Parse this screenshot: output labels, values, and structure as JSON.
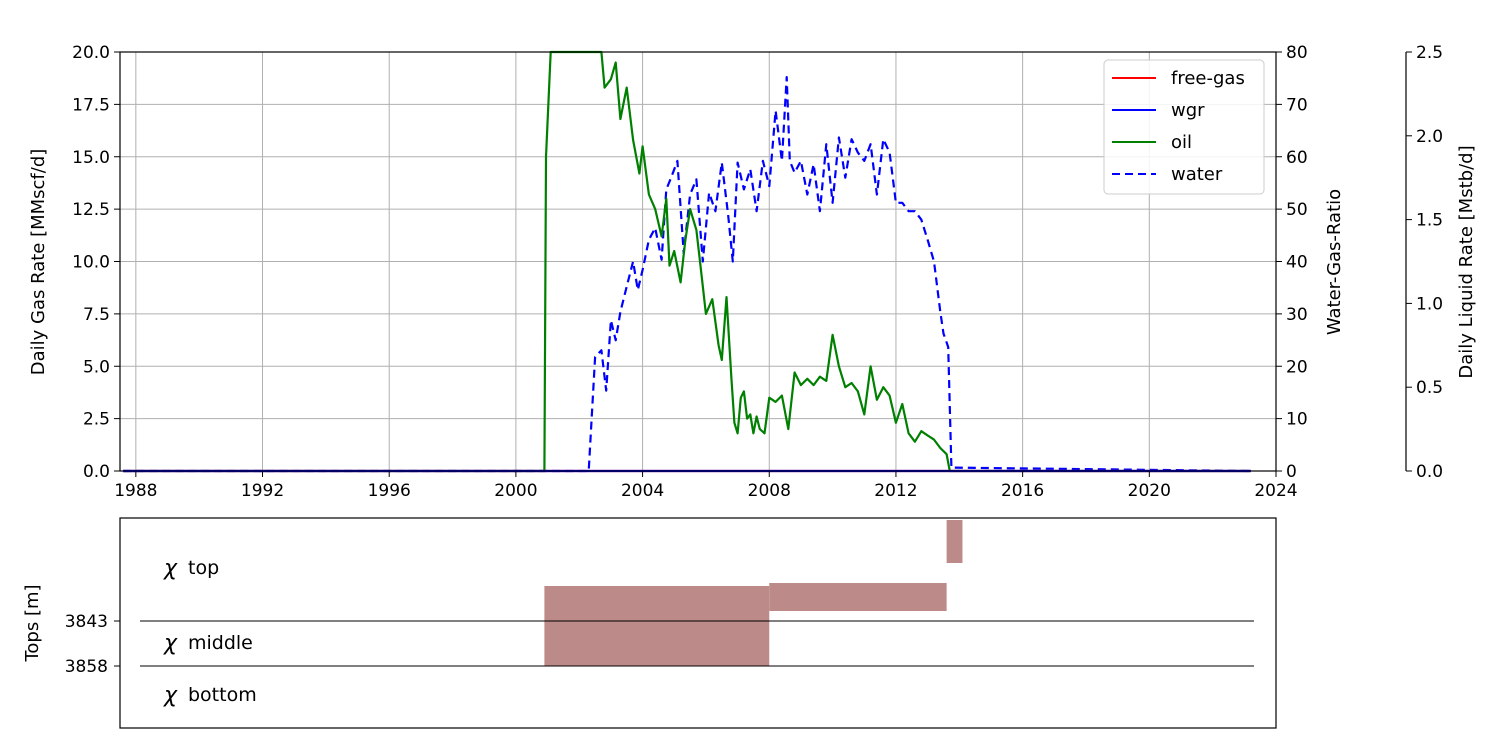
{
  "chart_data": [
    {
      "type": "line",
      "xlabel": "",
      "ylabel": "Daily Gas Rate [MMscf/d]",
      "y2label": "Water-Gas-Ratio",
      "y3label": "Daily Liquid Rate [Mstb/d]",
      "xlim": [
        1987.5,
        2024.0
      ],
      "ylim": [
        0,
        20
      ],
      "y2lim": [
        0,
        80
      ],
      "y3lim": [
        0,
        2.5
      ],
      "x_ticks": [
        "1988",
        "1992",
        "1996",
        "2000",
        "2004",
        "2008",
        "2012",
        "2016",
        "2020",
        "2024"
      ],
      "y_ticks": [
        "0.0",
        "2.5",
        "5.0",
        "7.5",
        "10.0",
        "12.5",
        "15.0",
        "17.5",
        "20.0"
      ],
      "y2_ticks": [
        "0",
        "10",
        "20",
        "30",
        "40",
        "50",
        "60",
        "70",
        "80"
      ],
      "y3_ticks": [
        "0.0",
        "0.5",
        "1.0",
        "1.5",
        "2.0",
        "2.5"
      ],
      "grid": true,
      "legend_position": "top-right",
      "series": [
        {
          "name": "free-gas",
          "color": "#ff0000",
          "style": "solid",
          "axis": "gas",
          "x": [
            1987.6,
            2023.2
          ],
          "y": [
            0,
            0
          ]
        },
        {
          "name": "wgr",
          "color": "#0000ff",
          "style": "solid",
          "axis": "wgr",
          "x": [
            1987.6,
            2023.2
          ],
          "y": [
            0,
            0
          ]
        },
        {
          "name": "oil",
          "color": "#008000",
          "style": "solid",
          "axis": "gas",
          "x": [
            1987.6,
            2000.9,
            2000.95,
            2001.1,
            2001.3,
            2002.7,
            2002.8,
            2003.0,
            2003.15,
            2003.3,
            2003.5,
            2003.7,
            2003.9,
            2004.0,
            2004.2,
            2004.4,
            2004.6,
            2004.75,
            2004.85,
            2005.0,
            2005.2,
            2005.35,
            2005.5,
            2005.7,
            2005.85,
            2006.0,
            2006.2,
            2006.4,
            2006.5,
            2006.65,
            2006.8,
            2006.9,
            2007.0,
            2007.1,
            2007.2,
            2007.3,
            2007.4,
            2007.5,
            2007.6,
            2007.7,
            2007.85,
            2008.0,
            2008.2,
            2008.4,
            2008.6,
            2008.8,
            2009.0,
            2009.2,
            2009.4,
            2009.6,
            2009.8,
            2010.0,
            2010.2,
            2010.4,
            2010.6,
            2010.8,
            2011.0,
            2011.2,
            2011.4,
            2011.6,
            2011.8,
            2012.0,
            2012.2,
            2012.4,
            2012.6,
            2012.8,
            2013.0,
            2013.2,
            2013.4,
            2013.6,
            2013.7,
            2023.2
          ],
          "y": [
            0,
            0,
            15.0,
            20.0,
            20.0,
            20.0,
            18.3,
            18.7,
            19.5,
            16.8,
            18.3,
            15.8,
            14.2,
            15.5,
            13.2,
            12.5,
            11.2,
            13.0,
            9.8,
            10.5,
            9.0,
            11.0,
            12.5,
            11.5,
            9.5,
            7.5,
            8.2,
            6.0,
            5.3,
            8.3,
            4.5,
            2.3,
            1.8,
            3.5,
            3.8,
            2.5,
            2.7,
            1.8,
            2.6,
            2.0,
            1.8,
            3.5,
            3.3,
            3.6,
            2.0,
            4.7,
            4.1,
            4.4,
            4.1,
            4.5,
            4.3,
            6.5,
            5.0,
            4.0,
            4.2,
            3.8,
            2.7,
            5.0,
            3.4,
            4.0,
            3.6,
            2.3,
            3.2,
            1.8,
            1.4,
            1.9,
            1.7,
            1.5,
            1.1,
            0.8,
            0.0,
            0.0
          ]
        },
        {
          "name": "water",
          "color": "#0000ff",
          "style": "dashed",
          "axis": "liquid",
          "x": [
            1987.6,
            2002.3,
            2002.5,
            2002.7,
            2002.85,
            2003.0,
            2003.15,
            2003.3,
            2003.5,
            2003.7,
            2003.85,
            2004.0,
            2004.2,
            2004.4,
            2004.6,
            2004.75,
            2004.9,
            2005.1,
            2005.3,
            2005.5,
            2005.7,
            2005.9,
            2006.1,
            2006.3,
            2006.5,
            2006.7,
            2006.85,
            2007.0,
            2007.2,
            2007.4,
            2007.6,
            2007.8,
            2008.0,
            2008.2,
            2008.4,
            2008.55,
            2008.65,
            2008.8,
            2009.0,
            2009.2,
            2009.4,
            2009.6,
            2009.8,
            2010.0,
            2010.2,
            2010.4,
            2010.6,
            2010.8,
            2011.0,
            2011.2,
            2011.4,
            2011.6,
            2011.8,
            2012.0,
            2012.2,
            2012.4,
            2012.6,
            2012.8,
            2013.0,
            2013.2,
            2013.4,
            2013.5,
            2013.65,
            2013.75,
            2023.2
          ],
          "y": [
            0,
            0,
            0.68,
            0.72,
            0.48,
            0.9,
            0.78,
            0.95,
            1.1,
            1.25,
            1.08,
            1.2,
            1.38,
            1.45,
            1.26,
            1.68,
            1.75,
            1.85,
            1.3,
            1.65,
            1.74,
            1.25,
            1.66,
            1.55,
            1.84,
            1.53,
            1.25,
            1.84,
            1.68,
            1.8,
            1.55,
            1.85,
            1.7,
            2.15,
            1.85,
            2.35,
            1.85,
            1.78,
            1.85,
            1.65,
            1.83,
            1.55,
            1.95,
            1.6,
            1.99,
            1.75,
            1.98,
            1.9,
            1.85,
            1.95,
            1.65,
            1.98,
            1.9,
            1.6,
            1.6,
            1.55,
            1.55,
            1.5,
            1.38,
            1.25,
            0.95,
            0.82,
            0.74,
            0.02,
            0.0
          ]
        }
      ]
    },
    {
      "type": "bar",
      "ylabel": "Tops [m]",
      "y_ticks": [
        "3843",
        "3858"
      ],
      "layers": [
        "top",
        "middle",
        "bottom"
      ],
      "intervals": [
        {
          "x_start": 2000.9,
          "x_end": 2008.0
        },
        {
          "x_start": 2008.0,
          "x_end": 2013.6
        },
        {
          "x_start": 2013.6,
          "x_end": 2014.1
        }
      ],
      "bar_color": "#bc8a88"
    }
  ]
}
